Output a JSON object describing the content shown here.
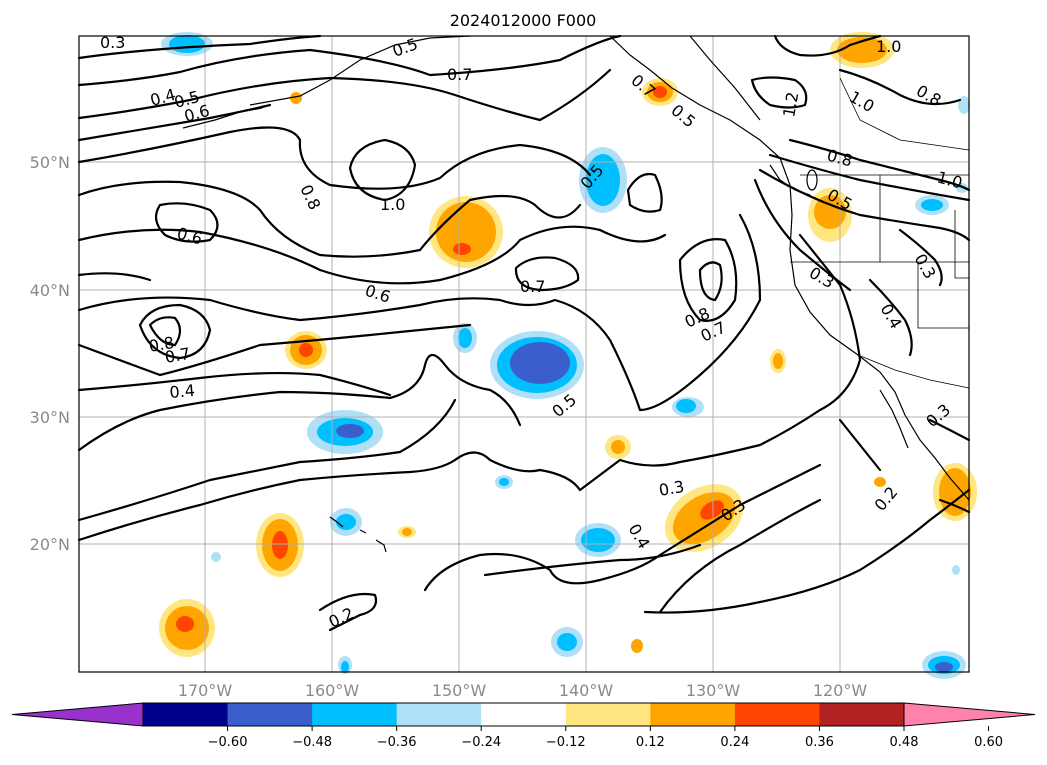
{
  "title": "2024012000 F000",
  "lat_labels": [
    "50°N",
    "40°N",
    "30°N",
    "20°N"
  ],
  "lon_labels": [
    "170°W",
    "160°W",
    "150°W",
    "140°W",
    "130°W",
    "120°W"
  ],
  "colorbar": {
    "ticks": [
      "−0.60",
      "−0.48",
      "−0.36",
      "−0.24",
      "−0.12",
      "0.12",
      "0.24",
      "0.36",
      "0.48",
      "0.60"
    ],
    "colors": [
      "#9932cc",
      "#00008b",
      "#3a5fcd",
      "#00bfff",
      "#b0e0f8",
      "#ffffff",
      "#ffe680",
      "#ffa500",
      "#ff4500",
      "#b22222",
      "#ff82ab"
    ]
  },
  "contour_labels": [
    "0.3",
    "0.4",
    "0.5",
    "0.6",
    "0.5",
    "0.7",
    "0.8",
    "1.0",
    "0.6",
    "0.8",
    "0.7",
    "0.6",
    "0.4",
    "0.7",
    "0.5",
    "0.8",
    "0.7",
    "0.5",
    "0.3",
    "0.3",
    "0.4",
    "0.2",
    "1.0",
    "1.0",
    "0.8",
    "1.2",
    "0.8",
    "0.5",
    "1.0",
    "0.3",
    "0.3",
    "0.4",
    "0.2",
    "0.7",
    "0.5",
    "0.3"
  ]
}
